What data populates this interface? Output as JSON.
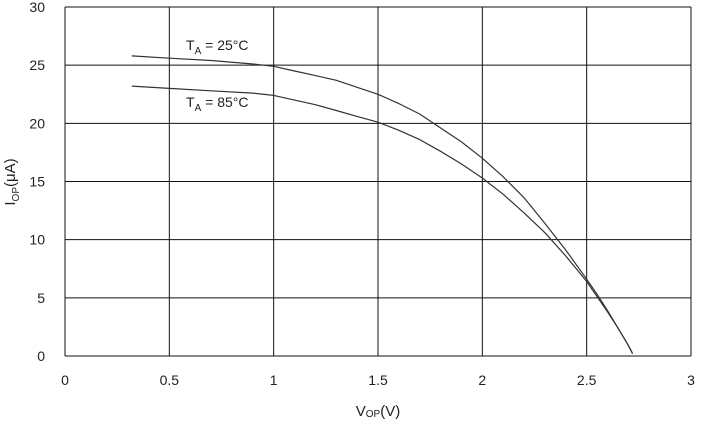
{
  "chart_data": {
    "type": "line",
    "xlabel": {
      "main": "V",
      "sub": "OP",
      "unit": "(V)"
    },
    "ylabel": {
      "main": "I",
      "sub": "OP",
      "unit": "(μA)"
    },
    "xlim": [
      0,
      3
    ],
    "ylim": [
      0,
      30
    ],
    "xticks": [
      {
        "value": 0,
        "label": "0"
      },
      {
        "value": 0.5,
        "label": "0.5"
      },
      {
        "value": 1,
        "label": "1"
      },
      {
        "value": 1.5,
        "label": "1.5"
      },
      {
        "value": 2,
        "label": "2"
      },
      {
        "value": 2.5,
        "label": "2.5"
      },
      {
        "value": 3,
        "label": "3"
      }
    ],
    "yticks": [
      {
        "value": 0,
        "label": "0"
      },
      {
        "value": 5,
        "label": "5"
      },
      {
        "value": 10,
        "label": "10"
      },
      {
        "value": 15,
        "label": "15"
      },
      {
        "value": 20,
        "label": "20"
      },
      {
        "value": 25,
        "label": "25"
      },
      {
        "value": 30,
        "label": "30"
      }
    ],
    "grid": true,
    "series": [
      {
        "name": "TA = 25°C",
        "label_parts": {
          "main": "T",
          "sub": "A",
          "rest": " = 25°C"
        },
        "color": "#333333",
        "x": [
          0.32,
          0.5,
          0.7,
          0.9,
          1.0,
          1.1,
          1.2,
          1.3,
          1.4,
          1.5,
          1.6,
          1.7,
          1.8,
          1.9,
          2.0,
          2.1,
          2.2,
          2.3,
          2.4,
          2.5,
          2.55,
          2.6,
          2.65,
          2.7,
          2.72
        ],
        "y": [
          25.8,
          25.6,
          25.4,
          25.1,
          24.9,
          24.5,
          24.1,
          23.7,
          23.1,
          22.5,
          21.7,
          20.8,
          19.6,
          18.4,
          17.0,
          15.4,
          13.6,
          11.4,
          9.1,
          6.6,
          5.3,
          3.9,
          2.4,
          0.9,
          0.2
        ]
      },
      {
        "name": "TA = 85°C",
        "label_parts": {
          "main": "T",
          "sub": "A",
          "rest": " = 85°C"
        },
        "color": "#333333",
        "x": [
          0.32,
          0.5,
          0.7,
          0.9,
          1.0,
          1.1,
          1.2,
          1.3,
          1.4,
          1.5,
          1.6,
          1.7,
          1.8,
          1.9,
          2.0,
          2.1,
          2.2,
          2.3,
          2.4,
          2.5,
          2.55,
          2.6,
          2.65,
          2.7,
          2.72
        ],
        "y": [
          23.2,
          23.0,
          22.8,
          22.6,
          22.4,
          22.0,
          21.6,
          21.1,
          20.6,
          20.1,
          19.4,
          18.6,
          17.6,
          16.5,
          15.3,
          13.9,
          12.3,
          10.6,
          8.6,
          6.4,
          5.1,
          3.8,
          2.4,
          0.9,
          0.2
        ]
      }
    ]
  }
}
